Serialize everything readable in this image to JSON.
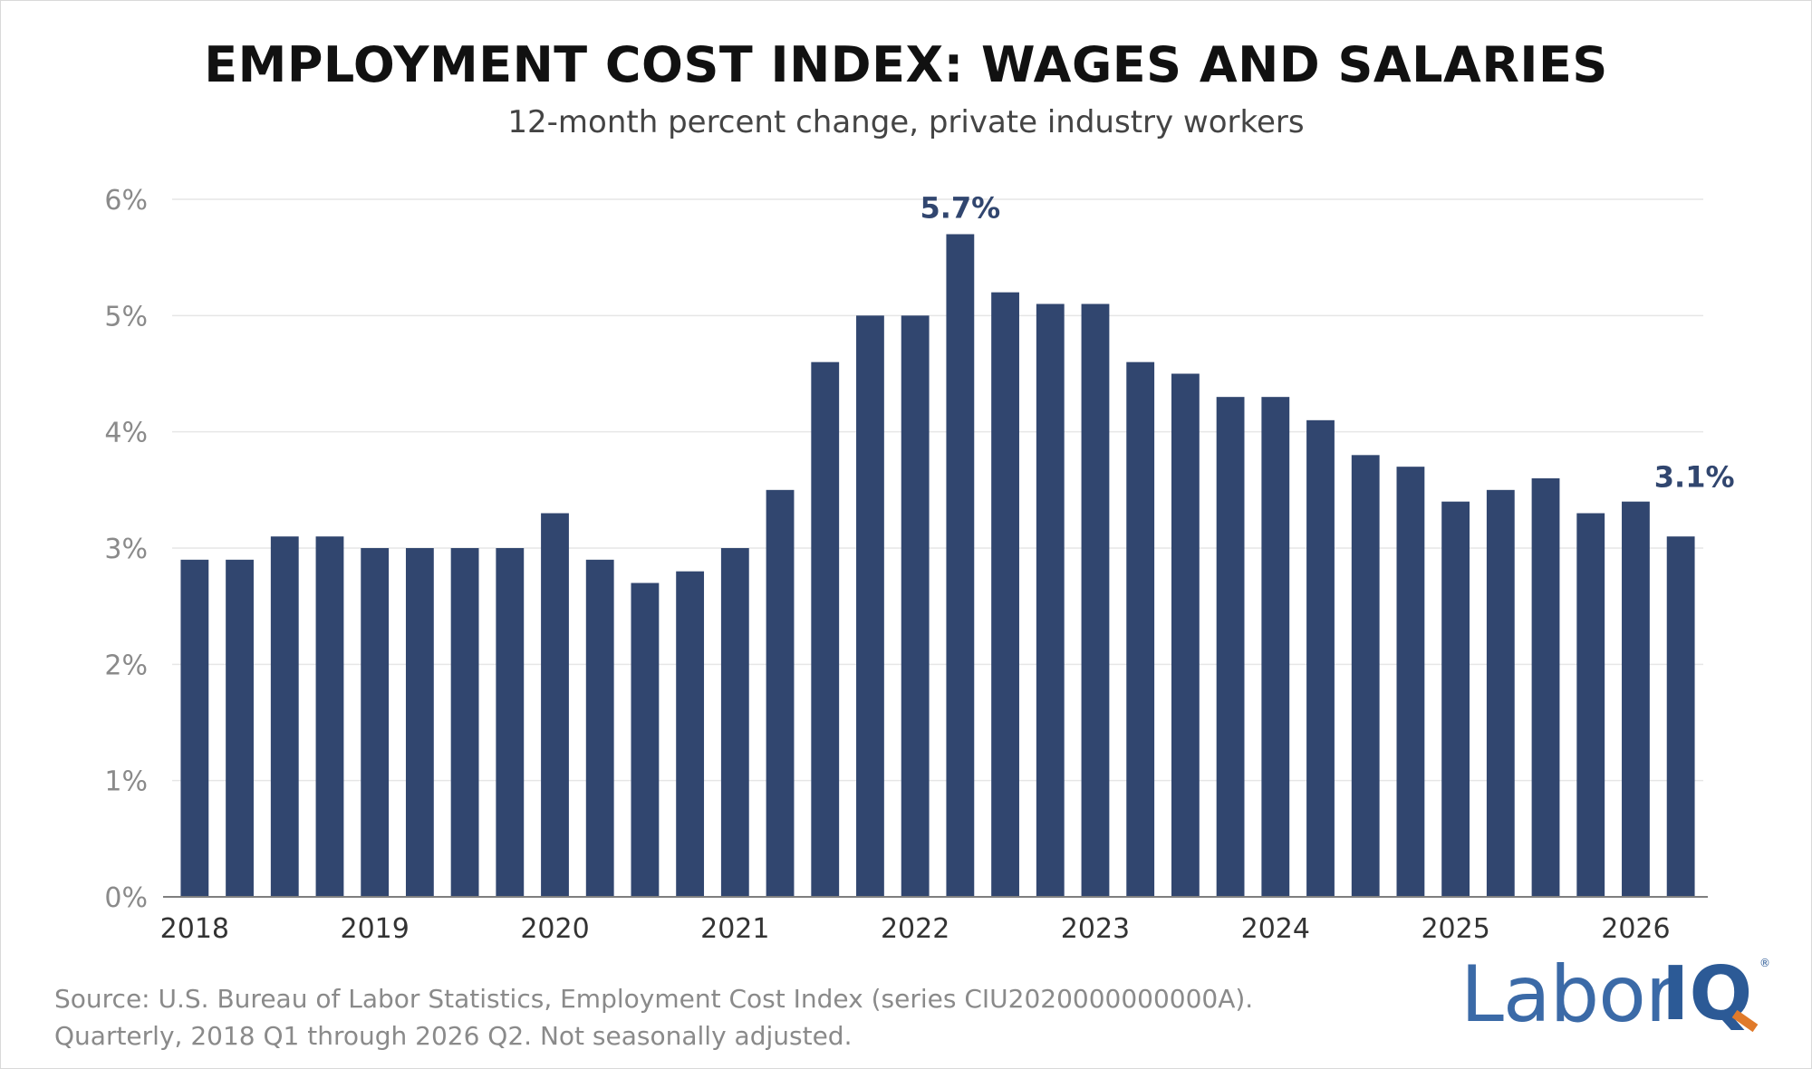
{
  "header": {
    "title": "EMPLOYMENT COST INDEX: WAGES AND SALARIES",
    "subtitle": "12-month percent change, private industry workers"
  },
  "footer": {
    "source_line1": "Source: U.S. Bureau of Labor Statistics, Employment Cost Index (series CIU2020000000000A).",
    "source_line2": "Quarterly, 2018 Q1 through 2026 Q2. Not seasonally adjusted."
  },
  "logo": {
    "text_labor": "Labor",
    "text_iq": "IQ",
    "registered": "®"
  },
  "colors": {
    "bar": "#31466f",
    "label": "#31466f",
    "grid": "#e6e6e6",
    "axis": "#7f7f7f",
    "tick_text": "#8a8a8a"
  },
  "chart_data": {
    "type": "bar",
    "title": "EMPLOYMENT COST INDEX: WAGES AND SALARIES",
    "subtitle": "12-month percent change, private industry workers",
    "xlabel": "",
    "ylabel": "",
    "ylim": [
      0,
      6
    ],
    "y_ticks": [
      0,
      1,
      2,
      3,
      4,
      5,
      6
    ],
    "y_tick_labels": [
      "0%",
      "1%",
      "2%",
      "3%",
      "4%",
      "5%",
      "6%"
    ],
    "x_tick_labels": [
      "2018",
      "2019",
      "2020",
      "2021",
      "2022",
      "2023",
      "2024",
      "2025",
      "2026"
    ],
    "categories": [
      "2018 Q1",
      "2018 Q2",
      "2018 Q3",
      "2018 Q4",
      "2019 Q1",
      "2019 Q2",
      "2019 Q3",
      "2019 Q4",
      "2020 Q1",
      "2020 Q2",
      "2020 Q3",
      "2020 Q4",
      "2021 Q1",
      "2021 Q2",
      "2021 Q3",
      "2021 Q4",
      "2022 Q1",
      "2022 Q2",
      "2022 Q3",
      "2022 Q4",
      "2023 Q1",
      "2023 Q2",
      "2023 Q3",
      "2023 Q4",
      "2024 Q1",
      "2024 Q2",
      "2024 Q3",
      "2024 Q4",
      "2025 Q1",
      "2025 Q2",
      "2025 Q3",
      "2025 Q4",
      "2026 Q1",
      "2026 Q2"
    ],
    "values": [
      2.9,
      2.9,
      3.1,
      3.1,
      3.0,
      3.0,
      3.0,
      3.0,
      3.3,
      2.9,
      2.7,
      2.8,
      3.0,
      3.5,
      4.6,
      5.0,
      5.0,
      5.7,
      5.2,
      5.1,
      5.1,
      4.6,
      4.5,
      4.3,
      4.3,
      4.1,
      3.8,
      3.7,
      3.4,
      3.5,
      3.6,
      3.3,
      3.4,
      3.1
    ],
    "annotations": [
      {
        "category": "2022 Q2",
        "text": "5.7%"
      },
      {
        "category": "2026 Q2",
        "text": "3.1%"
      }
    ],
    "grid": true,
    "legend": "none"
  }
}
